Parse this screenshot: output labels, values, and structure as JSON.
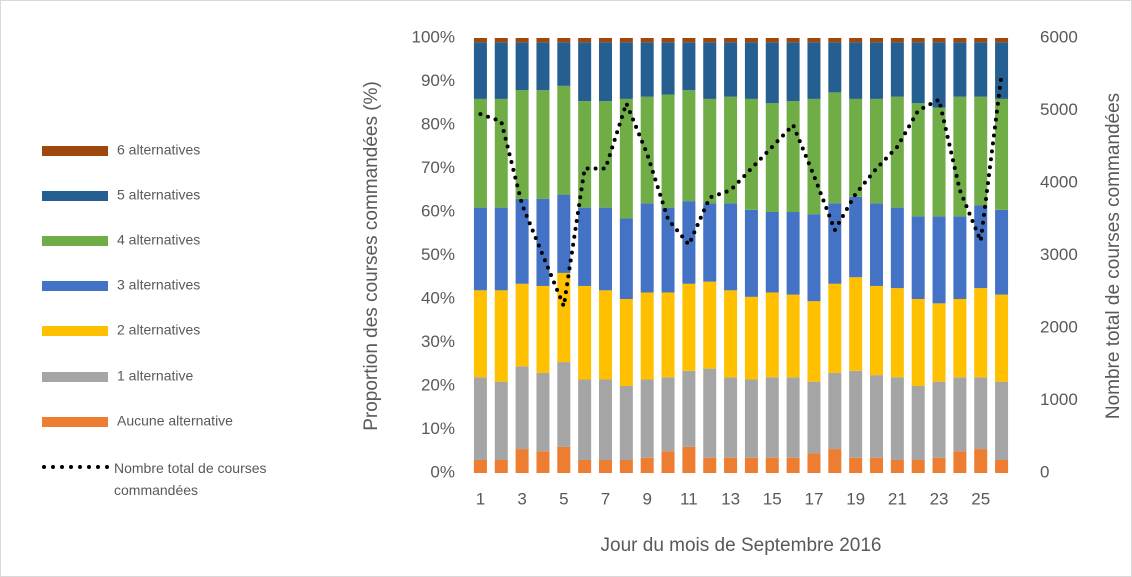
{
  "chart_data": {
    "type": "bar",
    "stacked": true,
    "xlabel": "Jour du mois de Septembre 2016",
    "ylabel": "Proportion des courses commandées (%)",
    "y2label": "Nombre total de courses commandées",
    "categories": [
      1,
      null,
      3,
      null,
      5,
      null,
      7,
      null,
      9,
      null,
      11,
      null,
      13,
      null,
      15,
      null,
      17,
      null,
      19,
      null,
      21,
      null,
      23,
      null,
      25,
      null
    ],
    "ylim": [
      0,
      100
    ],
    "yticks": [
      {
        "value": 0,
        "label": "0%"
      },
      {
        "value": 10,
        "label": "10%"
      },
      {
        "value": 20,
        "label": "20%"
      },
      {
        "value": 30,
        "label": "30%"
      },
      {
        "value": 40,
        "label": "40%"
      },
      {
        "value": 50,
        "label": "50%"
      },
      {
        "value": 60,
        "label": "60%"
      },
      {
        "value": 70,
        "label": "70%"
      },
      {
        "value": 80,
        "label": "80%"
      },
      {
        "value": 90,
        "label": "90%"
      },
      {
        "value": 100,
        "label": "100%"
      }
    ],
    "y2lim": [
      0,
      6000
    ],
    "y2ticks": [
      0,
      1000,
      2000,
      3000,
      4000,
      5000,
      6000
    ],
    "legend": "left",
    "series": [
      {
        "name": "Aucune alternative",
        "color": "#ed7d31",
        "values": [
          3,
          3,
          5.5,
          5,
          6,
          3,
          3,
          3,
          3.5,
          5,
          6,
          3.5,
          3.5,
          3.5,
          3.5,
          3.5,
          4.5,
          5.5,
          3.5,
          3.5,
          3,
          3,
          3.5,
          5,
          5.5,
          3
        ]
      },
      {
        "name": "1 alternative",
        "color": "#a5a5a5",
        "values": [
          19,
          18,
          19,
          18,
          19.5,
          18.5,
          18.5,
          17,
          18,
          17,
          17.5,
          20.5,
          18.5,
          18,
          18.5,
          18.5,
          16.5,
          17.5,
          20,
          19,
          19,
          17,
          17.5,
          17,
          16.5,
          18
        ]
      },
      {
        "name": "2 alternatives",
        "color": "#ffc000",
        "values": [
          20,
          21,
          19,
          20,
          20.5,
          21.5,
          20.5,
          20,
          20,
          19.5,
          20,
          20,
          20,
          19,
          19.5,
          19,
          18.5,
          20.5,
          21.5,
          20.5,
          20.5,
          20,
          18,
          18,
          20.5,
          20
        ]
      },
      {
        "name": "3 alternatives",
        "color": "#4472c4",
        "values": [
          19,
          19,
          19.5,
          20,
          18,
          18,
          19,
          18.5,
          20.5,
          19.5,
          19,
          18,
          20,
          20,
          18.5,
          19,
          20,
          18.5,
          18.5,
          19,
          18.5,
          19,
          20,
          19,
          19,
          19.5
        ]
      },
      {
        "name": "4 alternatives",
        "color": "#70ad47",
        "values": [
          25,
          25,
          25,
          25,
          25,
          24.5,
          24.5,
          27.5,
          24.5,
          26,
          25.5,
          24,
          24.5,
          25.5,
          25,
          25.5,
          26.5,
          25.5,
          22.5,
          24,
          25.5,
          26,
          25,
          27.5,
          25,
          25.5
        ]
      },
      {
        "name": "5 alternatives",
        "color": "#255e91",
        "values": [
          13,
          13,
          11,
          11,
          10,
          13.5,
          13.5,
          13,
          12.5,
          12,
          11,
          13,
          12.5,
          13,
          14,
          13.5,
          13,
          11.5,
          13,
          13,
          12.5,
          14,
          15,
          12.5,
          12.5,
          13
        ]
      },
      {
        "name": "6 alternatives",
        "color": "#9e480e",
        "values": [
          1,
          1,
          1,
          1,
          1,
          1,
          1,
          1,
          1,
          1,
          1,
          1,
          1,
          1,
          1,
          1,
          1,
          1,
          1,
          1,
          1,
          1,
          1,
          1,
          1,
          1
        ]
      },
      {
        "name": "Nombre total de courses commandées",
        "type": "line",
        "style": "dotted",
        "color": "#000000",
        "axis": "y2",
        "values": [
          4950,
          4850,
          3700,
          3000,
          2300,
          4200,
          4200,
          5100,
          4400,
          3500,
          3150,
          3800,
          3900,
          4200,
          4500,
          4800,
          4100,
          3350,
          3850,
          4200,
          4500,
          5000,
          5150,
          3900,
          3200,
          5500
        ]
      }
    ]
  }
}
